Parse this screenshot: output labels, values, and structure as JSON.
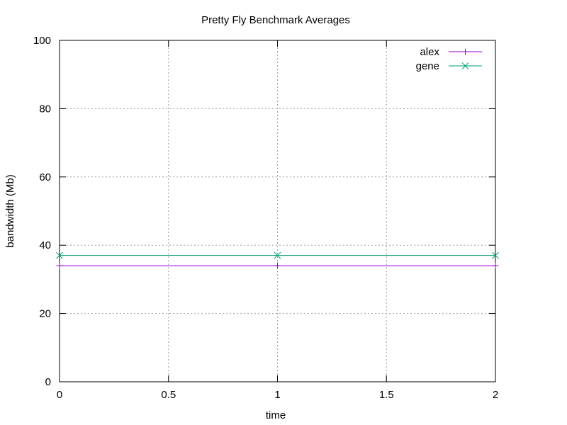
{
  "chart_data": {
    "type": "line",
    "title": "Pretty Fly Benchmark Averages",
    "xlabel": "time",
    "ylabel": "bandwidth (Mb)",
    "xlim": [
      0,
      2
    ],
    "ylim": [
      0,
      100
    ],
    "xticks": [
      "0",
      "0.5",
      "1",
      "1.5",
      "2"
    ],
    "xtick_values": [
      0,
      0.5,
      1,
      1.5,
      2
    ],
    "yticks": [
      "0",
      "20",
      "40",
      "60",
      "80",
      "100"
    ],
    "ytick_values": [
      0,
      20,
      40,
      60,
      80,
      100
    ],
    "grid": true,
    "legend_position": "top-right",
    "series": [
      {
        "name": "alex",
        "color": "#9400d3",
        "marker": "plus",
        "x": [
          0,
          1,
          2
        ],
        "y": [
          34,
          34,
          34
        ]
      },
      {
        "name": "gene",
        "color": "#009e73",
        "marker": "cross",
        "x": [
          0,
          1,
          2
        ],
        "y": [
          37,
          37,
          37
        ]
      }
    ]
  }
}
